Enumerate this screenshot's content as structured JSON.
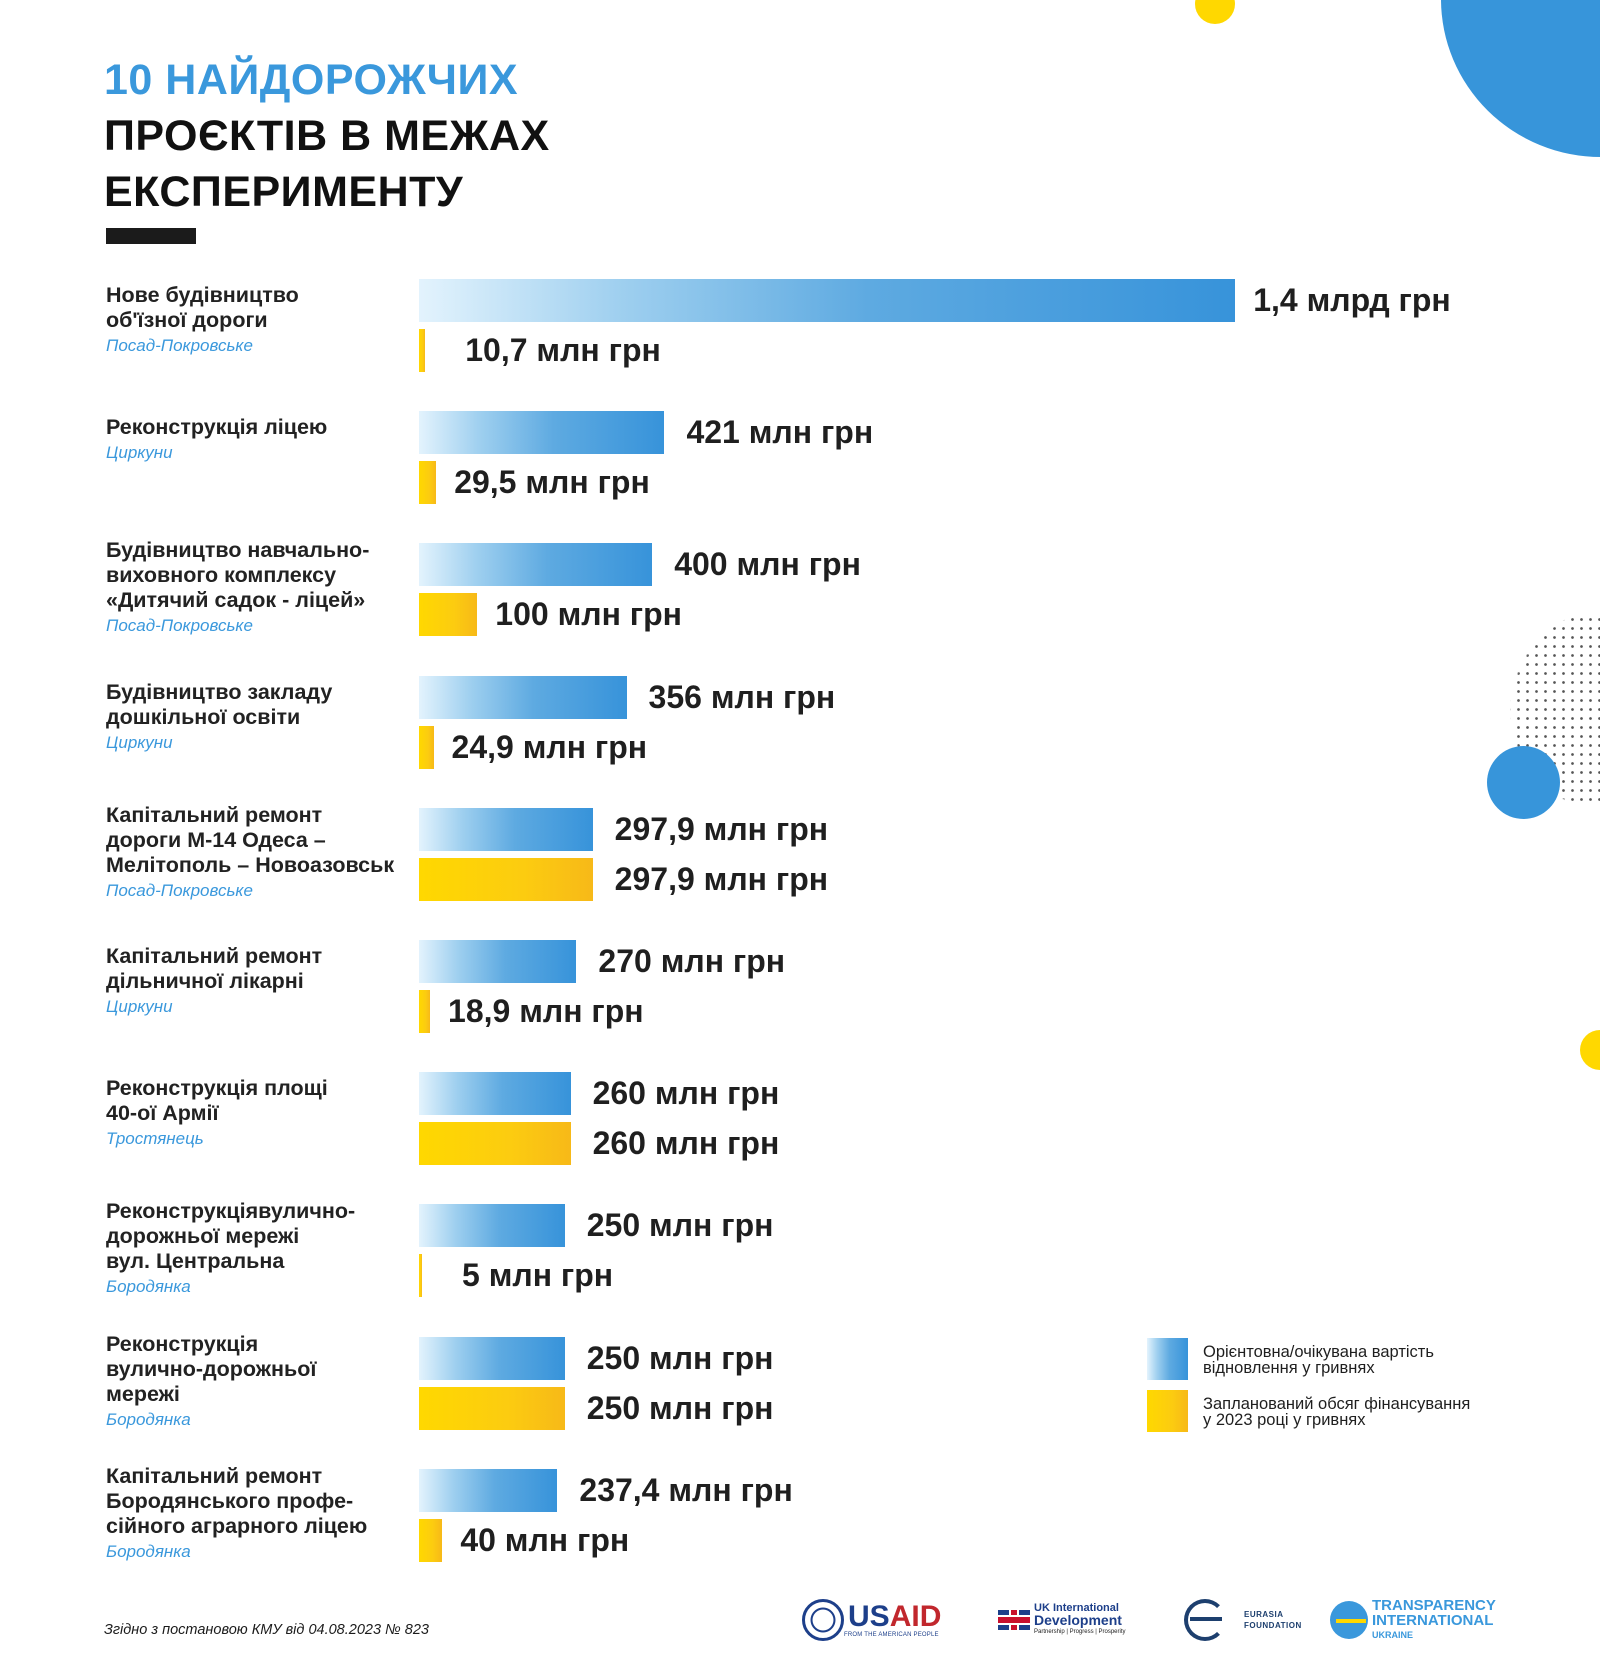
{
  "title": {
    "line1": "10 НАЙДОРОЖЧИХ",
    "line2": "ПРОЄКТІВ В МЕЖАХ",
    "line3": "ЕКСПЕРИМЕНТУ"
  },
  "colors": {
    "accent_blue": "#3795da",
    "accent_yellow": "#ffd800",
    "text_dark": "#1b1b1b"
  },
  "legend": {
    "blue_label_line1": "Орієнтовна/очікувана вартість",
    "blue_label_line2": "відновлення у гривнях",
    "yellow_label_line1": "Запланований обсяг фінансування",
    "yellow_label_line2": "у 2023 році у гривнях"
  },
  "chart_data": {
    "type": "bar",
    "orientation": "horizontal",
    "title": "10 найдорожчих проєктів в межах експерименту",
    "unit": "млн грн",
    "series": [
      {
        "name": "Орієнтовна/очікувана вартість відновлення у гривнях",
        "color": "#3795da",
        "values": [
          1400,
          421,
          400,
          356,
          297.9,
          270,
          260,
          250,
          250,
          237.4
        ]
      },
      {
        "name": "Запланований обсяг фінансування у 2023 році у гривнях",
        "color": "#ffd800",
        "values": [
          10.7,
          29.5,
          100,
          24.9,
          297.9,
          18.9,
          260,
          5,
          250,
          40
        ]
      }
    ],
    "categories": [
      {
        "name": [
          "Нове будівництво",
          "об'їзної дороги"
        ],
        "place": "Посад-Покровське",
        "cost_label": "1,4 млрд грн",
        "plan_label": "10,7 млн грн"
      },
      {
        "name": [
          "Реконструкція ліцею"
        ],
        "place": "Циркуни",
        "cost_label": "421 млн грн",
        "plan_label": "29,5 млн грн"
      },
      {
        "name": [
          "Будівництво навчально-",
          "виховного комплексу",
          "«Дитячий садок - ліцей»"
        ],
        "place": "Посад-Покровське",
        "cost_label": "400 млн грн",
        "plan_label": "100 млн грн"
      },
      {
        "name": [
          "Будівництво закладу",
          "дошкільної освіти"
        ],
        "place": "Циркуни",
        "cost_label": "356 млн грн",
        "plan_label": "24,9 млн грн"
      },
      {
        "name": [
          "Капітальний ремонт",
          "дороги М-14 Одеса –",
          "Мелітополь – Новоазовськ"
        ],
        "place": "Посад-Покровське",
        "cost_label": "297,9 млн грн",
        "plan_label": "297,9 млн грн"
      },
      {
        "name": [
          "Капітальний ремонт",
          "дільничної лікарні"
        ],
        "place": "Циркуни",
        "cost_label": "270 млн грн",
        "plan_label": "18,9 млн грн"
      },
      {
        "name": [
          "Реконструкція площі",
          "40-ої Армії"
        ],
        "place": "Тростянець",
        "cost_label": "260 млн грн",
        "plan_label": "260 млн грн"
      },
      {
        "name": [
          "Реконструкціявулично-",
          "дорожньої мережі",
          "вул. Центральна"
        ],
        "place": "Бородянка",
        "cost_label": "250 млн грн",
        "plan_label": "5 млн грн"
      },
      {
        "name": [
          "Реконструкція",
          "вулично-дорожньої",
          "мережі"
        ],
        "place": "Бородянка",
        "cost_label": "250 млн грн",
        "plan_label": "250 млн грн"
      },
      {
        "name": [
          "Капітальний ремонт",
          "Бородянського профе-",
          "сійного аграрного ліцею"
        ],
        "place": "Бородянка",
        "cost_label": "237,4 млн грн",
        "plan_label": "40 млн грн"
      }
    ],
    "legend_position": "bottom-right",
    "grid": false,
    "axis_visible": false
  },
  "footer": {
    "note": "Згідно з постановою КМУ від 04.08.2023 № 823",
    "logos": {
      "usaid_word_1": "US",
      "usaid_word_2": "AID",
      "usaid_sub": "FROM THE AMERICAN PEOPLE",
      "uk_line1": "UK International",
      "uk_line2": "Development",
      "uk_sub": "Partnership  |  Progress  |  Prosperity",
      "eurasia_line1": "EURASIA",
      "eurasia_line2": "FOUNDATION",
      "ti_line1": "TRANSPARENCY",
      "ti_line2": "INTERNATIONAL",
      "ti_line3": "UKRAINE"
    }
  }
}
